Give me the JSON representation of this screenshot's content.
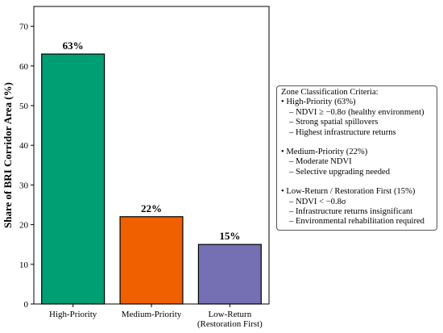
{
  "chart_data": {
    "type": "bar",
    "categories": [
      "High-Priority",
      "Medium-Priority",
      "Low-Return\n(Restoration First)"
    ],
    "values": [
      63,
      22,
      15
    ],
    "data_labels": [
      "63%",
      "22%",
      "15%"
    ],
    "colors": [
      "#009e73",
      "#f06000",
      "#7570b3"
    ],
    "ylabel": "Share of BRI Corridor Area (%)",
    "ylim": [
      0,
      75
    ],
    "yticks": [
      0,
      10,
      20,
      30,
      40,
      50,
      60,
      70
    ],
    "grid": false,
    "bar_edge_color": "#000000"
  },
  "criteria": {
    "title": "Zone Classification Criteria:",
    "groups": [
      {
        "heading": "• High-Priority (63%)",
        "items": [
          "– NDVI ≥ −0.8σ (healthy environment)",
          "– Strong spatial spillovers",
          "– Highest infrastructure returns"
        ]
      },
      {
        "heading": "• Medium-Priority (22%)",
        "items": [
          "– Moderate NDVI",
          "– Selective upgrading needed"
        ]
      },
      {
        "heading": "• Low-Return / Restoration First (15%)",
        "items": [
          "– NDVI < −0.8σ",
          "– Infrastructure returns insignificant",
          "– Environmental rehabilitation required"
        ]
      }
    ]
  }
}
